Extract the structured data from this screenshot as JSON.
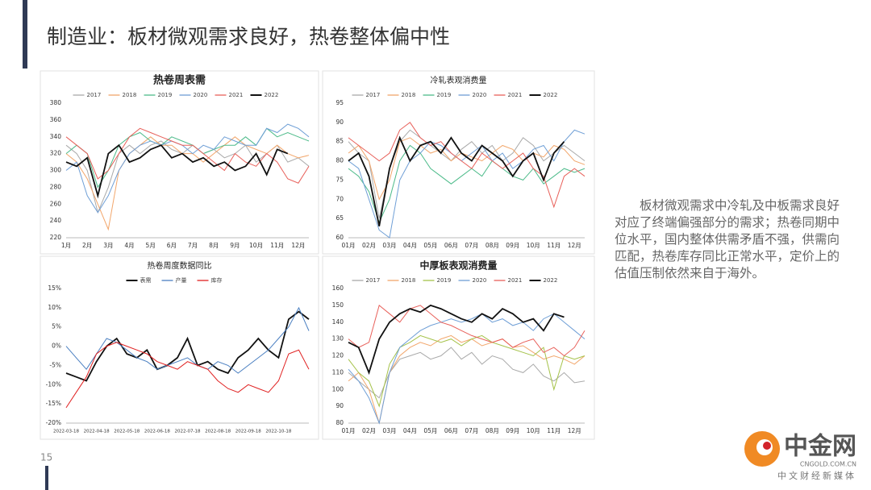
{
  "header": {
    "title": "制造业：板材微观需求良好，热卷整体偏中性"
  },
  "chart_data": [
    {
      "type": "line",
      "title": "热卷周表需",
      "categories": [
        "1月",
        null,
        "2月",
        null,
        "3月",
        null,
        "4月",
        null,
        "5月",
        null,
        "6月",
        null,
        "7月",
        null,
        "8月",
        null,
        "9月",
        null,
        "10月",
        null,
        "11月",
        null,
        "12月",
        null
      ],
      "ylim": [
        220,
        380
      ],
      "yticks": [
        220,
        240,
        260,
        280,
        300,
        320,
        340,
        360,
        380
      ],
      "legend": "top",
      "series": [
        {
          "name": "2017",
          "color": "#a9a9a9",
          "values": [
            330,
            320,
            300,
            250,
            280,
            320,
            330,
            320,
            330,
            335,
            325,
            320,
            330,
            320,
            325,
            315,
            320,
            330,
            310,
            320,
            330,
            310,
            315,
            305
          ]
        },
        {
          "name": "2018",
          "color": "#f2a66b",
          "values": [
            320,
            310,
            290,
            260,
            230,
            300,
            320,
            330,
            340,
            330,
            330,
            320,
            320,
            310,
            320,
            330,
            340,
            330,
            325,
            320,
            330,
            320,
            315,
            318
          ]
        },
        {
          "name": "2019",
          "color": "#4dbb8a",
          "values": [
            320,
            330,
            320,
            280,
            300,
            330,
            340,
            345,
            335,
            330,
            340,
            335,
            330,
            320,
            325,
            330,
            330,
            340,
            330,
            350,
            340,
            345,
            340,
            335
          ]
        },
        {
          "name": "2020",
          "color": "#6f9fd6",
          "values": [
            300,
            310,
            270,
            250,
            270,
            300,
            320,
            330,
            335,
            330,
            335,
            330,
            320,
            330,
            325,
            340,
            335,
            330,
            330,
            350,
            345,
            355,
            350,
            340
          ]
        },
        {
          "name": "2021",
          "color": "#e8605a",
          "values": [
            340,
            330,
            320,
            290,
            300,
            320,
            340,
            350,
            345,
            340,
            335,
            330,
            330,
            320,
            310,
            300,
            320,
            310,
            305,
            320,
            310,
            290,
            285,
            305
          ]
        },
        {
          "name": "2022",
          "color": "#111111",
          "values": [
            310,
            305,
            315,
            270,
            320,
            330,
            310,
            315,
            325,
            330,
            315,
            320,
            310,
            315,
            305,
            310,
            300,
            305,
            320,
            295,
            325,
            320,
            null,
            null
          ]
        }
      ]
    },
    {
      "type": "line",
      "title": "冷轧表观消费量",
      "categories": [
        "01月",
        null,
        "02月",
        null,
        "03月",
        null,
        "04月",
        null,
        "05月",
        null,
        "06月",
        null,
        "07月",
        null,
        "08月",
        null,
        "09月",
        null,
        "10月",
        null,
        "11月",
        null,
        "12月",
        null
      ],
      "ylim": [
        60,
        95
      ],
      "yticks": [
        60,
        65,
        70,
        75,
        80,
        85,
        90,
        95
      ],
      "legend": "top",
      "series": [
        {
          "name": "2017",
          "color": "#a9a9a9",
          "values": [
            85,
            82,
            80,
            65,
            78,
            85,
            88,
            86,
            84,
            82,
            80,
            83,
            85,
            82,
            84,
            80,
            82,
            86,
            84,
            80,
            82,
            84,
            82,
            80
          ]
        },
        {
          "name": "2018",
          "color": "#f2a66b",
          "values": [
            82,
            84,
            80,
            70,
            75,
            85,
            86,
            84,
            82,
            83,
            80,
            82,
            81,
            80,
            82,
            84,
            83,
            80,
            82,
            81,
            84,
            83,
            80,
            79
          ]
        },
        {
          "name": "2019",
          "color": "#4dbb8a",
          "values": [
            78,
            76,
            72,
            64,
            70,
            80,
            84,
            82,
            78,
            76,
            74,
            76,
            78,
            76,
            80,
            78,
            76,
            75,
            78,
            74,
            76,
            78,
            77,
            78
          ]
        },
        {
          "name": "2020",
          "color": "#6f9fd6",
          "values": [
            80,
            78,
            70,
            62,
            60,
            75,
            80,
            82,
            85,
            84,
            82,
            80,
            82,
            84,
            80,
            82,
            78,
            80,
            83,
            84,
            80,
            85,
            88,
            87
          ]
        },
        {
          "name": "2021",
          "color": "#e8605a",
          "values": [
            86,
            84,
            82,
            80,
            82,
            88,
            90,
            86,
            84,
            85,
            82,
            80,
            78,
            82,
            80,
            78,
            80,
            82,
            78,
            76,
            68,
            76,
            78,
            76
          ]
        },
        {
          "name": "2022",
          "color": "#111111",
          "values": [
            80,
            82,
            76,
            63,
            78,
            86,
            80,
            84,
            85,
            82,
            86,
            82,
            80,
            84,
            82,
            80,
            76,
            80,
            82,
            75,
            82,
            85,
            null,
            null
          ]
        }
      ]
    },
    {
      "type": "line",
      "title": "热卷周度数据同比",
      "categories": [
        "2022-03-18",
        null,
        null,
        "2022-04-18",
        null,
        null,
        "2022-05-18",
        null,
        null,
        "2022-06-18",
        null,
        null,
        "2022-07-18",
        null,
        null,
        "2022-08-18",
        null,
        null,
        "2022-09-18",
        null,
        null,
        "2022-10-18",
        null,
        null,
        null
      ],
      "ylim": [
        -20,
        15
      ],
      "yticks": [
        {
          "value": -20,
          "label": "-20%"
        },
        {
          "value": -15,
          "label": "-15%"
        },
        {
          "value": -10,
          "label": "-10%"
        },
        {
          "value": -5,
          "label": "-5%"
        },
        {
          "value": 0,
          "label": "0%"
        },
        {
          "value": 5,
          "label": "5%"
        },
        {
          "value": 10,
          "label": "10%"
        },
        {
          "value": 15,
          "label": "15%"
        }
      ],
      "legend": "top",
      "series": [
        {
          "name": "表需",
          "color": "#111111",
          "values": [
            -7,
            -8,
            -9,
            -4,
            0,
            2,
            -2,
            -3,
            -1,
            -6,
            -5,
            -3,
            2,
            -5,
            -4,
            -6,
            -7,
            -3,
            -1,
            2,
            -1,
            -3,
            7,
            9,
            7
          ]
        },
        {
          "name": "产量",
          "color": "#4a7fc1",
          "values": [
            0,
            -3,
            -6,
            -2,
            2,
            1,
            -1,
            -3,
            -4,
            -6,
            -5,
            -4,
            -3,
            -5,
            -6,
            -4,
            -5,
            -7,
            -5,
            -3,
            -1,
            2,
            5,
            10,
            4
          ]
        },
        {
          "name": "库存",
          "color": "#e02020",
          "values": [
            -16,
            -12,
            -8,
            -2,
            0,
            1,
            0,
            -1,
            -2,
            -4,
            -5,
            -6,
            -4,
            -5,
            -6,
            -9,
            -11,
            -12,
            -10,
            -11,
            -12,
            -9,
            -2,
            -1,
            -6
          ]
        }
      ]
    },
    {
      "type": "line",
      "title": "中厚板表观消费量",
      "categories": [
        "01月",
        null,
        "02月",
        null,
        "03月",
        null,
        "04月",
        null,
        "05月",
        null,
        "06月",
        null,
        "07月",
        null,
        "08月",
        null,
        "09月",
        null,
        "10月",
        null,
        "11月",
        null,
        "12月",
        null
      ],
      "ylim": [
        80,
        160
      ],
      "yticks": [
        80,
        90,
        100,
        110,
        120,
        130,
        140,
        150,
        160
      ],
      "legend": "top",
      "series": [
        {
          "name": "2017",
          "color": "#a9a9a9",
          "values": [
            110,
            105,
            100,
            95,
            110,
            118,
            120,
            122,
            118,
            120,
            125,
            118,
            122,
            115,
            120,
            118,
            112,
            110,
            115,
            108,
            105,
            110,
            104,
            105
          ]
        },
        {
          "name": "2018",
          "color": "#f2a66b",
          "values": [
            105,
            110,
            100,
            80,
            110,
            120,
            125,
            128,
            126,
            130,
            132,
            128,
            130,
            126,
            128,
            130,
            125,
            126,
            122,
            118,
            120,
            118,
            115,
            120
          ]
        },
        {
          "name": "2019",
          "color": "#a5c24a",
          "values": [
            118,
            110,
            105,
            90,
            115,
            125,
            128,
            132,
            130,
            128,
            130,
            126,
            130,
            132,
            128,
            126,
            124,
            122,
            120,
            125,
            100,
            120,
            118,
            120
          ]
        },
        {
          "name": "2020",
          "color": "#6f9fd6",
          "values": [
            112,
            105,
            95,
            80,
            110,
            125,
            130,
            135,
            138,
            140,
            142,
            140,
            142,
            145,
            140,
            142,
            138,
            140,
            135,
            142,
            145,
            140,
            135,
            130
          ]
        },
        {
          "name": "2021",
          "color": "#e8605a",
          "values": [
            130,
            125,
            128,
            150,
            145,
            140,
            148,
            150,
            145,
            140,
            138,
            135,
            132,
            130,
            128,
            130,
            125,
            128,
            130,
            122,
            125,
            120,
            125,
            135
          ]
        },
        {
          "name": "2022",
          "color": "#111111",
          "values": [
            128,
            125,
            110,
            130,
            140,
            145,
            148,
            146,
            150,
            148,
            145,
            142,
            140,
            145,
            142,
            148,
            145,
            140,
            142,
            135,
            145,
            143,
            null,
            null
          ]
        }
      ]
    }
  ],
  "text": {
    "paragraph": "板材微观需求中冷轧及中板需求良好对应了终端偏强部分的需求；热卷同期中位水平，国内整体供需矛盾不强，供需向匹配，热卷库存同比正常水平，定价上的估值压制依然来自于海外。"
  },
  "footer": {
    "page": "15",
    "logo": "中金网",
    "site": "CNGOLD.COM.CN",
    "slogan": "中文财经新媒体"
  }
}
